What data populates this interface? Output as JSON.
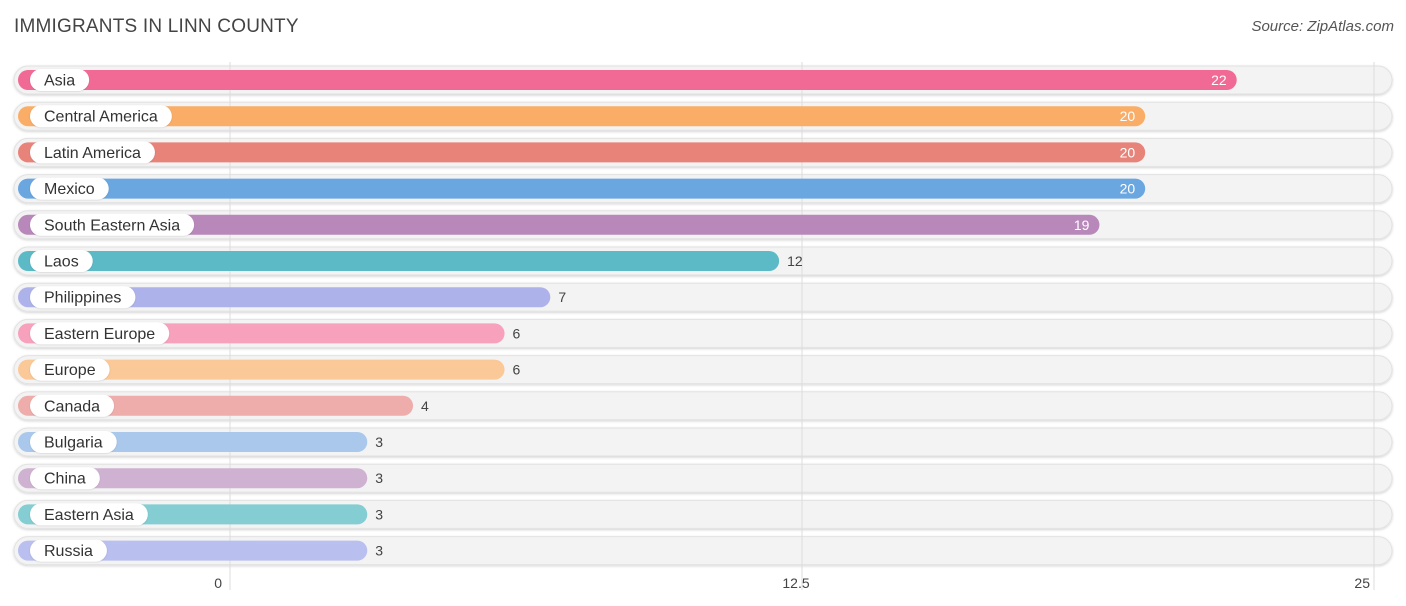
{
  "header": {
    "title": "IMMIGRANTS IN LINN COUNTY",
    "source": "Source: ZipAtlas.com"
  },
  "chart_data": {
    "type": "bar",
    "orientation": "horizontal",
    "title": "IMMIGRANTS IN LINN COUNTY",
    "categories": [
      "Asia",
      "Central America",
      "Latin America",
      "Mexico",
      "South Eastern Asia",
      "Laos",
      "Philippines",
      "Eastern Europe",
      "Europe",
      "Canada",
      "Bulgaria",
      "China",
      "Eastern Asia",
      "Russia"
    ],
    "values": [
      22,
      20,
      20,
      20,
      19,
      12,
      7,
      6,
      6,
      4,
      3,
      3,
      3,
      3
    ],
    "colors": [
      "#f06a95",
      "#f9ad67",
      "#e8837a",
      "#6aa6e0",
      "#b888ba",
      "#5bbac6",
      "#adb3ea",
      "#f7a1bc",
      "#fbc898",
      "#eeacaa",
      "#a9c8ec",
      "#cfb2d2",
      "#83cdd3",
      "#b9bfee"
    ],
    "xlim": [
      0,
      25
    ],
    "ticks": [
      0,
      12.5,
      25
    ],
    "tick_labels": [
      "0",
      "12.5",
      "25"
    ],
    "grid": true,
    "value_labels_inside_threshold": 19
  }
}
